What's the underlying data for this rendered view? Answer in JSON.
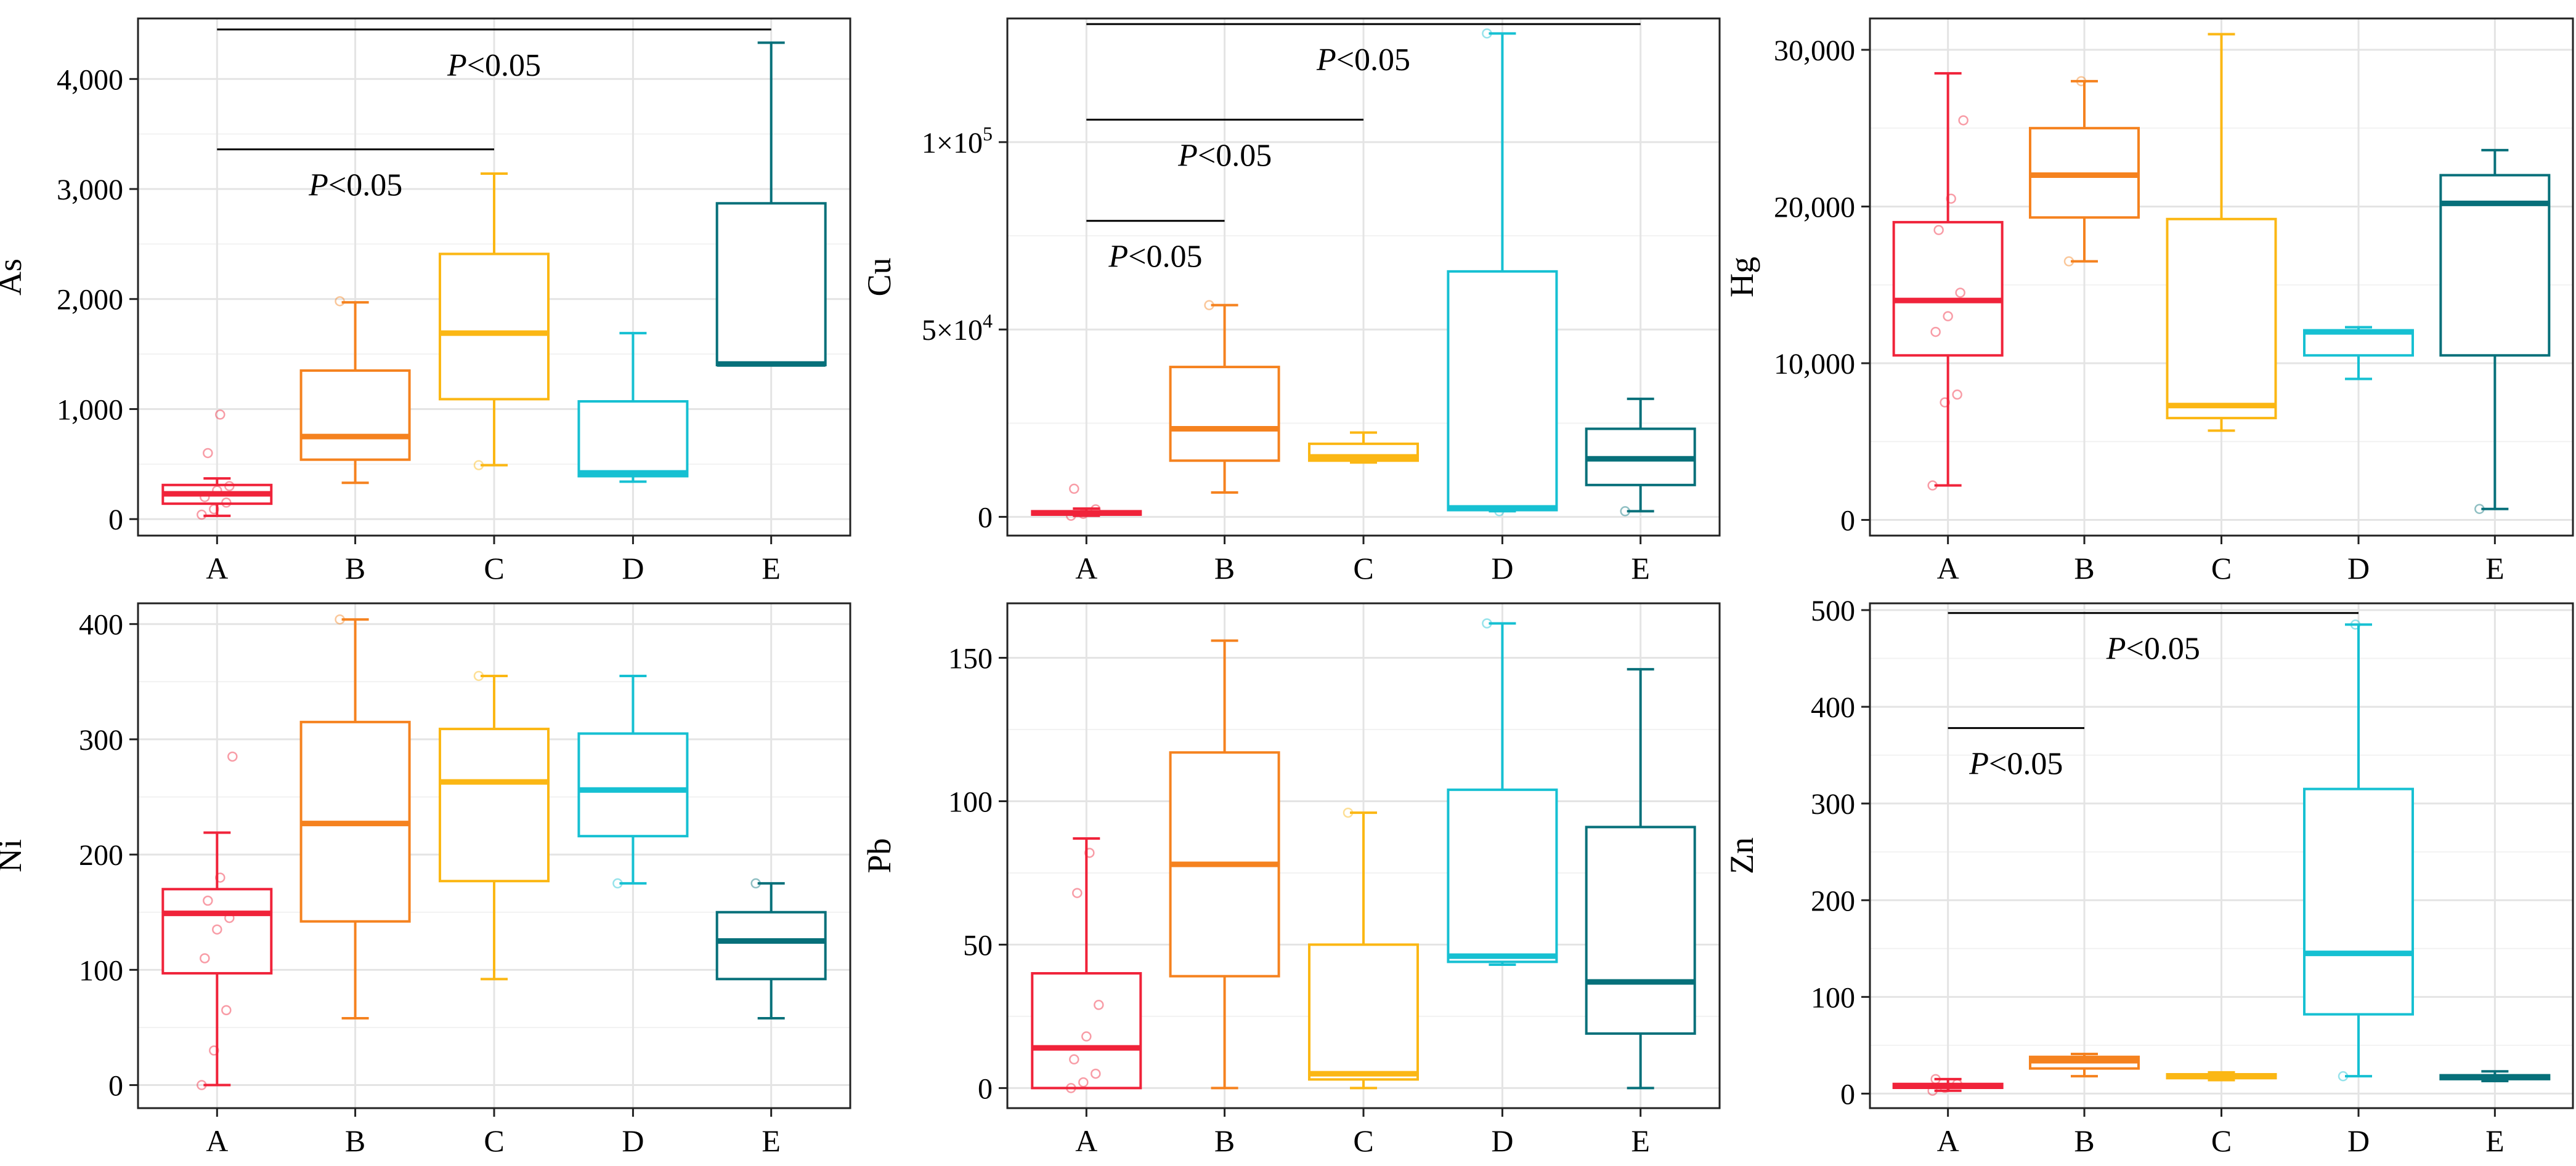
{
  "figure_colors": {
    "A": "#f0233a",
    "B": "#f5821f",
    "C": "#fbb714",
    "D": "#16c0d2",
    "E": "#07707a"
  },
  "chart_data": [
    {
      "type": "box",
      "ylabel": "As",
      "tick_labels": [
        "0",
        "1,000",
        "2,000",
        "3,000",
        "4,000"
      ],
      "ticks": [
        0,
        1000,
        2000,
        3000,
        4000
      ],
      "ylim": [
        -150,
        4550
      ],
      "categories": [
        "A",
        "B",
        "C",
        "D",
        "E"
      ],
      "boxes": [
        {
          "min": 30,
          "q1": 140,
          "median": 230,
          "q3": 310,
          "max": 370,
          "points": [
            40,
            90,
            150,
            200,
            260,
            300,
            600,
            950
          ]
        },
        {
          "min": 330,
          "q1": 540,
          "median": 750,
          "q3": 1350,
          "max": 1970,
          "points": [
            1980
          ]
        },
        {
          "min": 490,
          "q1": 1090,
          "median": 1690,
          "q3": 2410,
          "max": 3140,
          "points": [
            490
          ]
        },
        {
          "min": 340,
          "q1": 390,
          "median": 420,
          "q3": 1070,
          "max": 1690,
          "points": []
        },
        {
          "min": 1400,
          "q1": 1400,
          "median": 1410,
          "q3": 2870,
          "max": 4330,
          "points": []
        }
      ],
      "annotations": [
        {
          "from": "A",
          "to": "C",
          "y": 3360,
          "label_p": "P",
          "label_rest": "<0.05"
        },
        {
          "from": "A",
          "to": "E",
          "y": 4450,
          "label_p": "P",
          "label_rest": "<0.05"
        }
      ]
    },
    {
      "type": "box",
      "ylabel": "Cu",
      "ticks": [
        0,
        50000,
        100000
      ],
      "ylim": [
        -5000,
        133000
      ],
      "tick_labels": [
        {
          "m": "0",
          "sup": ""
        },
        {
          "m": "5×10",
          "sup": "4"
        },
        {
          "m": "1×10",
          "sup": "5"
        }
      ],
      "categories": [
        "A",
        "B",
        "C",
        "D",
        "E"
      ],
      "boxes": [
        {
          "min": 300,
          "q1": 600,
          "median": 1000,
          "q3": 1500,
          "max": 2200,
          "points": [
            300,
            800,
            2000,
            7500
          ]
        },
        {
          "min": 6500,
          "q1": 15000,
          "median": 23500,
          "q3": 40000,
          "max": 56500,
          "points": [
            56500
          ]
        },
        {
          "min": 14500,
          "q1": 15000,
          "median": 16000,
          "q3": 19500,
          "max": 22500,
          "points": []
        },
        {
          "min": 1500,
          "q1": 1800,
          "median": 2400,
          "q3": 65500,
          "max": 129000,
          "points": [
            129000,
            1500
          ]
        },
        {
          "min": 1500,
          "q1": 8500,
          "median": 15500,
          "q3": 23500,
          "max": 31500,
          "points": [
            1500
          ]
        }
      ],
      "annotations": [
        {
          "from": "A",
          "to": "B",
          "y": 79000,
          "label_p": "P",
          "label_rest": "<0.05"
        },
        {
          "from": "A",
          "to": "C",
          "y": 106000,
          "label_p": "P",
          "label_rest": "<0.05"
        },
        {
          "from": "A",
          "to": "E",
          "y": 131500,
          "label_p": "P",
          "label_rest": "<0.05"
        }
      ]
    },
    {
      "type": "box",
      "ylabel": "Hg",
      "tick_labels": [
        "0",
        "10,000",
        "20,000",
        "30,000"
      ],
      "ticks": [
        0,
        10000,
        20000,
        30000
      ],
      "ylim": [
        -1000,
        32000
      ],
      "categories": [
        "A",
        "B",
        "C",
        "D",
        "E"
      ],
      "boxes": [
        {
          "min": 2200,
          "q1": 10500,
          "median": 14000,
          "q3": 19000,
          "max": 28500,
          "points": [
            2200,
            7500,
            8000,
            12000,
            13000,
            14500,
            18500,
            20500,
            25500
          ]
        },
        {
          "min": 16500,
          "q1": 19300,
          "median": 22000,
          "q3": 25000,
          "max": 28000,
          "points": [
            16500,
            28000
          ]
        },
        {
          "min": 5700,
          "q1": 6500,
          "median": 7300,
          "q3": 19200,
          "max": 31000,
          "points": []
        },
        {
          "min": 9000,
          "q1": 10500,
          "median": 12000,
          "q3": 12100,
          "max": 12300,
          "points": []
        },
        {
          "min": 700,
          "q1": 10500,
          "median": 20200,
          "q3": 22000,
          "max": 23600,
          "points": [
            700
          ]
        }
      ],
      "annotations": []
    },
    {
      "type": "box",
      "ylabel": "Ni",
      "tick_labels": [
        "0",
        "100",
        "200",
        "300",
        "400"
      ],
      "ticks": [
        0,
        100,
        200,
        300,
        400
      ],
      "ylim": [
        -20,
        418
      ],
      "categories": [
        "A",
        "B",
        "C",
        "D",
        "E"
      ],
      "boxes": [
        {
          "min": 0,
          "q1": 97,
          "median": 149,
          "q3": 170,
          "max": 219,
          "points": [
            0,
            30,
            65,
            110,
            135,
            145,
            160,
            180,
            285
          ]
        },
        {
          "min": 58,
          "q1": 142,
          "median": 227,
          "q3": 315,
          "max": 404,
          "points": [
            404
          ]
        },
        {
          "min": 92,
          "q1": 177,
          "median": 263,
          "q3": 309,
          "max": 355,
          "points": [
            355
          ]
        },
        {
          "min": 175,
          "q1": 216,
          "median": 256,
          "q3": 305,
          "max": 355,
          "points": [
            175
          ]
        },
        {
          "min": 58,
          "q1": 92,
          "median": 125,
          "q3": 150,
          "max": 175,
          "points": [
            175
          ]
        }
      ],
      "annotations": []
    },
    {
      "type": "box",
      "ylabel": "Pb",
      "tick_labels": [
        "0",
        "50",
        "100",
        "150"
      ],
      "ticks": [
        0,
        50,
        100,
        150
      ],
      "ylim": [
        -7,
        169
      ],
      "categories": [
        "A",
        "B",
        "C",
        "D",
        "E"
      ],
      "boxes": [
        {
          "min": 0,
          "q1": 0,
          "median": 14,
          "q3": 40,
          "max": 87,
          "points": [
            0,
            2,
            5,
            10,
            18,
            29,
            68,
            82
          ]
        },
        {
          "min": 0,
          "q1": 39,
          "median": 78,
          "q3": 117,
          "max": 156,
          "points": []
        },
        {
          "min": 0,
          "q1": 3,
          "median": 5,
          "q3": 50,
          "max": 96,
          "points": [
            96
          ]
        },
        {
          "min": 43,
          "q1": 44,
          "median": 46,
          "q3": 104,
          "max": 162,
          "points": [
            162
          ]
        },
        {
          "min": 0,
          "q1": 19,
          "median": 37,
          "q3": 91,
          "max": 146,
          "points": []
        }
      ],
      "annotations": []
    },
    {
      "type": "box",
      "ylabel": "Zn",
      "tick_labels": [
        "0",
        "100",
        "200",
        "300",
        "400",
        "500"
      ],
      "ticks": [
        0,
        100,
        200,
        300,
        400,
        500
      ],
      "ylim": [
        -15,
        507
      ],
      "categories": [
        "A",
        "B",
        "C",
        "D",
        "E"
      ],
      "boxes": [
        {
          "min": 3,
          "q1": 6,
          "median": 8,
          "q3": 10,
          "max": 15,
          "points": [
            3,
            6,
            10,
            15
          ]
        },
        {
          "min": 18,
          "q1": 26,
          "median": 34,
          "q3": 38,
          "max": 41,
          "points": []
        },
        {
          "min": 14,
          "q1": 16,
          "median": 18,
          "q3": 20,
          "max": 22,
          "points": []
        },
        {
          "min": 18,
          "q1": 82,
          "median": 145,
          "q3": 315,
          "max": 485,
          "points": [
            18,
            485
          ]
        },
        {
          "min": 13,
          "q1": 15,
          "median": 17,
          "q3": 19,
          "max": 23,
          "points": []
        }
      ],
      "annotations": [
        {
          "from": "A",
          "to": "B",
          "y": 378,
          "label_p": "P",
          "label_rest": "<0.05"
        },
        {
          "from": "A",
          "to": "D",
          "y": 497,
          "label_p": "P",
          "label_rest": "<0.05"
        }
      ]
    }
  ]
}
